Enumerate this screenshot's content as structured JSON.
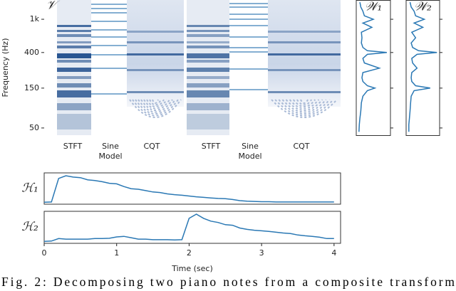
{
  "figure": {
    "spectrogram": {
      "label": "𝒱",
      "y_axis_label": "Frequency (Hz)",
      "log_scale": true,
      "ylim": [
        41,
        1700
      ],
      "yticks": [
        {
          "value": 1000,
          "label": "1k"
        },
        400,
        150,
        50
      ],
      "sections": [
        [
          "STFT"
        ],
        [
          "Sine",
          "Model"
        ],
        [
          "CQT"
        ],
        [
          "STFT"
        ],
        [
          "Sine",
          "Model"
        ],
        [
          "CQT"
        ]
      ]
    },
    "templates": {
      "freq": [
        45,
        55,
        65,
        80,
        100,
        120,
        140,
        150,
        160,
        180,
        200,
        230,
        260,
        300,
        340,
        380,
        400,
        420,
        460,
        520,
        600,
        700,
        800,
        900,
        1000,
        1100,
        1250,
        1400,
        1600
      ],
      "series": [
        {
          "name": "𝒲₁",
          "color": "#2a78b4",
          "values": [
            0.02,
            0.03,
            0.05,
            0.08,
            0.1,
            0.15,
            0.3,
            0.55,
            0.3,
            0.15,
            0.12,
            0.15,
            0.7,
            0.2,
            0.15,
            0.3,
            0.95,
            0.3,
            0.15,
            0.1,
            0.12,
            0.1,
            0.45,
            0.15,
            0.5,
            0.2,
            0.15,
            0.08,
            0.05
          ]
        },
        {
          "name": "𝒲₂",
          "color": "#2a78b4",
          "values": [
            0.02,
            0.02,
            0.04,
            0.06,
            0.08,
            0.1,
            0.2,
            0.75,
            0.25,
            0.12,
            0.1,
            0.12,
            0.3,
            0.15,
            0.12,
            0.3,
            0.98,
            0.35,
            0.15,
            0.1,
            0.25,
            0.12,
            0.5,
            0.2,
            0.55,
            0.25,
            0.2,
            0.1,
            0.06
          ]
        }
      ]
    },
    "activations": {
      "x_label": "Time (sec)",
      "xlim": [
        0,
        4.09
      ],
      "xticks": [
        0,
        1,
        2,
        3,
        4
      ],
      "x": [
        0,
        0.1,
        0.2,
        0.3,
        0.4,
        0.5,
        0.6,
        0.7,
        0.8,
        0.9,
        1.0,
        1.1,
        1.2,
        1.3,
        1.4,
        1.5,
        1.6,
        1.7,
        1.8,
        1.9,
        2.0,
        2.1,
        2.2,
        2.3,
        2.4,
        2.5,
        2.6,
        2.7,
        2.8,
        2.9,
        3.0,
        3.1,
        3.2,
        3.3,
        3.4,
        3.5,
        3.6,
        3.7,
        3.8,
        3.9,
        4.0
      ],
      "series": [
        {
          "name": "ℋ₁",
          "color": "#2a78b4",
          "values": [
            0.02,
            0.03,
            0.9,
            1.0,
            0.95,
            0.93,
            0.85,
            0.82,
            0.78,
            0.72,
            0.7,
            0.6,
            0.52,
            0.5,
            0.45,
            0.4,
            0.38,
            0.33,
            0.3,
            0.28,
            0.25,
            0.22,
            0.2,
            0.18,
            0.16,
            0.15,
            0.12,
            0.08,
            0.06,
            0.05,
            0.04,
            0.04,
            0.03,
            0.03,
            0.03,
            0.03,
            0.03,
            0.03,
            0.03,
            0.03,
            0.03
          ]
        },
        {
          "name": "ℋ₂",
          "color": "#2a78b4",
          "values": [
            0.02,
            0.03,
            0.12,
            0.1,
            0.1,
            0.1,
            0.1,
            0.12,
            0.12,
            0.13,
            0.18,
            0.2,
            0.15,
            0.1,
            0.1,
            0.08,
            0.08,
            0.08,
            0.07,
            0.08,
            0.85,
            1.0,
            0.85,
            0.75,
            0.7,
            0.62,
            0.6,
            0.5,
            0.45,
            0.42,
            0.4,
            0.38,
            0.35,
            0.32,
            0.3,
            0.25,
            0.22,
            0.2,
            0.17,
            0.12,
            0.12
          ]
        }
      ]
    }
  },
  "caption": "Fig. 2: Decomposing two piano notes from a composite transform"
}
